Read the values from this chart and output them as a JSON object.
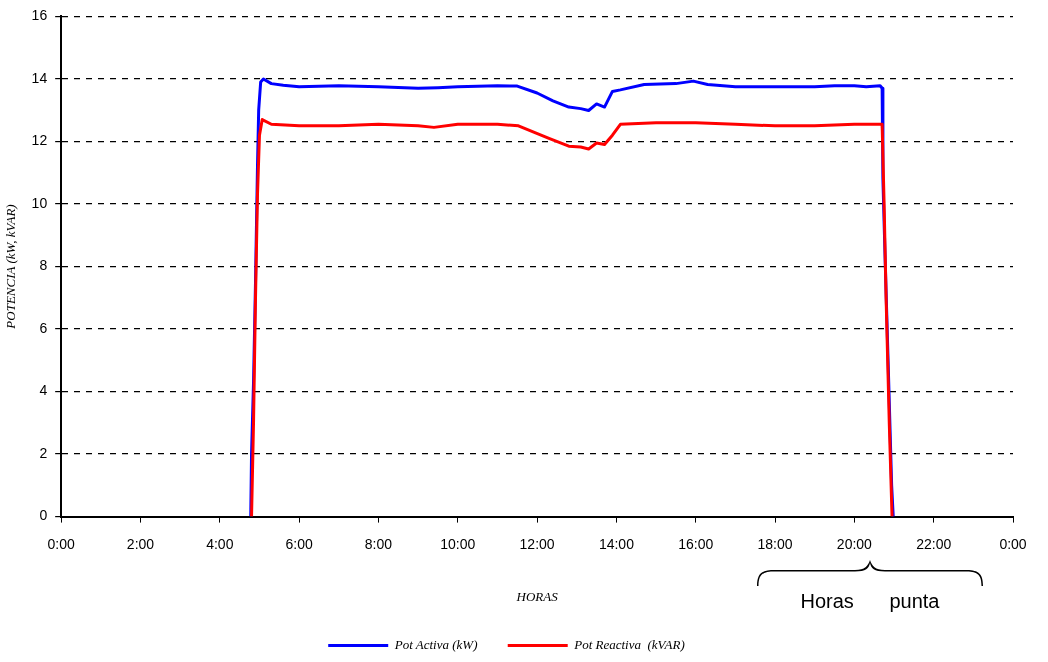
{
  "chart_data": {
    "type": "line",
    "xlabel": "HORAS",
    "ylabel": "POTENCIA (kW, kVAR)",
    "xlim": [
      0,
      24
    ],
    "xticks": [
      {
        "value": 0,
        "label": "0:00"
      },
      {
        "value": 2,
        "label": "2:00"
      },
      {
        "value": 4,
        "label": "4:00"
      },
      {
        "value": 6,
        "label": "6:00"
      },
      {
        "value": 8,
        "label": "8:00"
      },
      {
        "value": 10,
        "label": "10:00"
      },
      {
        "value": 12,
        "label": "12:00"
      },
      {
        "value": 14,
        "label": "14:00"
      },
      {
        "value": 16,
        "label": "16:00"
      },
      {
        "value": 18,
        "label": "18:00"
      },
      {
        "value": 20,
        "label": "20:00"
      },
      {
        "value": 22,
        "label": "22:00"
      },
      {
        "value": 24,
        "label": "0:00"
      }
    ],
    "ylim": [
      0,
      16
    ],
    "yticks": [
      0,
      2,
      4,
      6,
      8,
      10,
      12,
      14,
      16
    ],
    "grid": "y",
    "legend": "bottom",
    "marker": "none",
    "line_style": "solid",
    "annotations": [
      "Horas punta"
    ],
    "series": [
      {
        "name": "Pot Activa (kW)",
        "color": "#0000ff",
        "x": [
          4.78,
          4.8,
          4.85,
          4.9,
          4.95,
          4.98,
          5.03,
          5.1,
          5.3,
          5.6,
          6,
          7,
          8,
          9,
          9.5,
          10,
          11,
          11.5,
          12,
          12.4,
          12.8,
          13.1,
          13.3,
          13.5,
          13.7,
          13.9,
          14.1,
          14.7,
          15.5,
          15.94,
          16.3,
          17,
          18,
          19,
          19.5,
          20,
          20.3,
          20.65,
          20.7,
          20.72,
          20.77,
          20.85,
          20.94,
          20.98
        ],
        "values": [
          0,
          2,
          4.3,
          7.5,
          11.2,
          13,
          13.9,
          14,
          13.85,
          13.8,
          13.75,
          13.78,
          13.75,
          13.7,
          13.72,
          13.75,
          13.78,
          13.77,
          13.55,
          13.3,
          13.1,
          13.05,
          12.99,
          13.2,
          13.1,
          13.6,
          13.65,
          13.82,
          13.85,
          13.93,
          13.82,
          13.75,
          13.75,
          13.75,
          13.78,
          13.78,
          13.75,
          13.78,
          13.7,
          10.8,
          8.5,
          5,
          1,
          0
        ]
      },
      {
        "name": "Pot Reactiva  (kVAR)",
        "color": "#ff0000",
        "x": [
          4.8,
          4.85,
          4.9,
          4.95,
          5.0,
          5.07,
          5.3,
          6,
          7,
          8,
          9,
          9.4,
          10,
          11,
          11.53,
          12.3,
          12.8,
          13.1,
          13.3,
          13.5,
          13.7,
          13.9,
          14.1,
          15,
          16,
          17,
          18,
          19,
          20,
          20.7,
          20.75,
          20.8,
          20.88,
          20.95
        ],
        "values": [
          0,
          3,
          7,
          10.3,
          12.2,
          12.7,
          12.55,
          12.5,
          12.5,
          12.55,
          12.5,
          12.45,
          12.55,
          12.55,
          12.5,
          12.1,
          11.85,
          11.82,
          11.76,
          11.95,
          11.9,
          12.2,
          12.55,
          12.6,
          12.6,
          12.55,
          12.5,
          12.5,
          12.55,
          12.55,
          10,
          7,
          3,
          0
        ]
      }
    ]
  }
}
